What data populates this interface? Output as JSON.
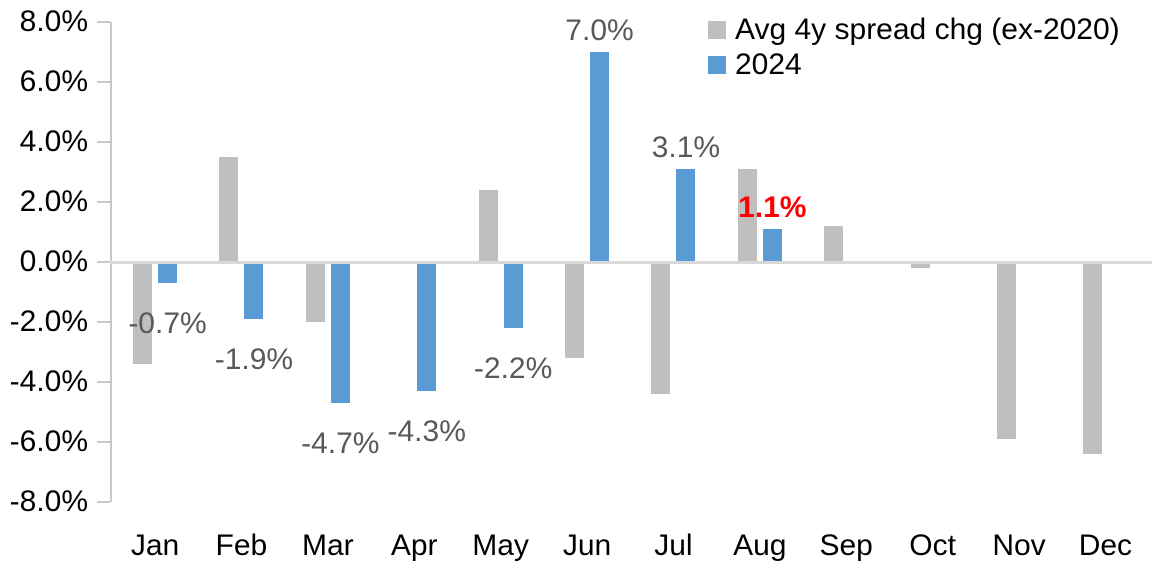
{
  "chart_data": {
    "type": "bar",
    "title": "",
    "xlabel": "",
    "ylabel": "",
    "categories": [
      "Jan",
      "Feb",
      "Mar",
      "Apr",
      "May",
      "Jun",
      "Jul",
      "Aug",
      "Sep",
      "Oct",
      "Nov",
      "Dec"
    ],
    "series": [
      {
        "name": "Avg 4y spread chg (ex-2020)",
        "color": "#bfbfbf",
        "values": [
          -3.4,
          3.5,
          -2.0,
          0.0,
          2.4,
          -3.2,
          -4.4,
          3.1,
          1.2,
          -0.2,
          -5.9,
          -6.4
        ]
      },
      {
        "name": "2024",
        "color": "#5b9bd5",
        "values": [
          -0.7,
          -1.9,
          -4.7,
          -4.3,
          -2.2,
          7.0,
          3.1,
          1.1,
          null,
          null,
          null,
          null
        ]
      }
    ],
    "data_labels": [
      {
        "category": "Jan",
        "text": "-0.7%",
        "color": "#595959",
        "bold": false
      },
      {
        "category": "Feb",
        "text": "-1.9%",
        "color": "#595959",
        "bold": false
      },
      {
        "category": "Mar",
        "text": "-4.7%",
        "color": "#595959",
        "bold": false
      },
      {
        "category": "Apr",
        "text": "-4.3%",
        "color": "#595959",
        "bold": false
      },
      {
        "category": "May",
        "text": "-2.2%",
        "color": "#595959",
        "bold": false
      },
      {
        "category": "Jun",
        "text": "7.0%",
        "color": "#595959",
        "bold": false
      },
      {
        "category": "Jul",
        "text": "3.1%",
        "color": "#595959",
        "bold": false
      },
      {
        "category": "Aug",
        "text": "1.1%",
        "color": "#ff0000",
        "bold": true
      }
    ],
    "ylim": [
      -8,
      8
    ],
    "ytick_step": 2,
    "ytick_labels": [
      "8.0%",
      "6.0%",
      "4.0%",
      "2.0%",
      "0.0%",
      "-2.0%",
      "-4.0%",
      "-6.0%",
      "-8.0%"
    ],
    "ytick_values": [
      8,
      6,
      4,
      2,
      0,
      -2,
      -4,
      -6,
      -8
    ],
    "grid": false,
    "legend_position": "top-right",
    "axis_color": "#c8c8c8",
    "zero_line_color": "#d9d9d9"
  }
}
